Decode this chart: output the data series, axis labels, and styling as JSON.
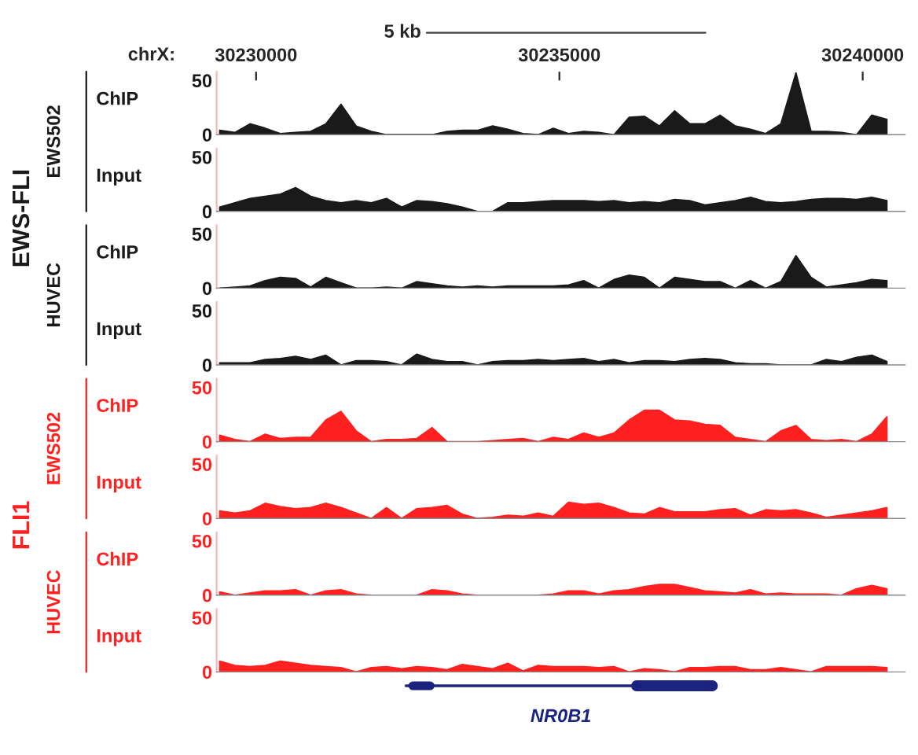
{
  "chart_data": [
    {
      "type": "other",
      "annotations": [
        "EWS-FLI",
        "EWS502",
        "HUVEC",
        "FLI1",
        "EWS502",
        "HUVEC"
      ],
      "colors": [
        "#1a1a1a",
        "#1a1a1a",
        "#1a1a1a",
        "#ff2020",
        "#ff2020",
        "#ff2020"
      ]
    },
    {
      "type": "area",
      "ylabel": "ChIP",
      "xlabel": "chrX:",
      "annotations": [
        "5 kb"
      ],
      "xlim": [
        30229350,
        30240700
      ],
      "xticks": [
        30230000,
        30235000,
        30240000
      ],
      "ylim": [
        0,
        58
      ],
      "yticks": [
        0,
        50
      ],
      "x": [
        30229400,
        30229650,
        30229900,
        30230150,
        30230400,
        30230650,
        30230900,
        30231150,
        30231400,
        30231650,
        30231900,
        30232150,
        30232400,
        30232650,
        30232900,
        30233150,
        30233400,
        30233650,
        30233900,
        30234150,
        30234400,
        30234650,
        30234900,
        30235150,
        30235400,
        30235650,
        30235900,
        30236150,
        30236400,
        30236650,
        30236900,
        30237150,
        30237400,
        30237650,
        30237900,
        30238150,
        30238400,
        30238650,
        30238900,
        30239150,
        30239400,
        30239650,
        30239900,
        30240150,
        30240400
      ],
      "series": [
        {
          "color": "#1a1a1a",
          "values": [
            4,
            2,
            10,
            6,
            1,
            2,
            3,
            10,
            28,
            8,
            3,
            0,
            0,
            0,
            0,
            3,
            4,
            4,
            8,
            5,
            1,
            0,
            6,
            1,
            3,
            2,
            0,
            16,
            17,
            8,
            22,
            10,
            10,
            18,
            8,
            5,
            1,
            10,
            57,
            3,
            3,
            2,
            0,
            18,
            14
          ]
        }
      ]
    },
    {
      "type": "area",
      "ylabel": "Input",
      "tick_labels": "y",
      "xlim": [
        30229350,
        30240700
      ],
      "ylim": [
        0,
        58
      ],
      "yticks": [
        0,
        50
      ],
      "x": [
        30229400,
        30229650,
        30229900,
        30230150,
        30230400,
        30230650,
        30230900,
        30231150,
        30231400,
        30231650,
        30231900,
        30232150,
        30232400,
        30232650,
        30232900,
        30233150,
        30233400,
        30233650,
        30233900,
        30234150,
        30234400,
        30234650,
        30234900,
        30235150,
        30235400,
        30235650,
        30235900,
        30236150,
        30236400,
        30236650,
        30236900,
        30237150,
        30237400,
        30237650,
        30237900,
        30238150,
        30238400,
        30238650,
        30238900,
        30239150,
        30239400,
        30239650,
        30239900,
        30240150,
        30240400
      ],
      "series": [
        {
          "color": "#1a1a1a",
          "values": [
            4,
            8,
            12,
            14,
            16,
            22,
            14,
            10,
            8,
            10,
            8,
            12,
            4,
            10,
            9,
            7,
            4,
            0,
            0,
            8,
            8,
            9,
            10,
            10,
            10,
            9,
            10,
            8,
            9,
            8,
            11,
            10,
            6,
            8,
            10,
            13,
            9,
            8,
            9,
            11,
            12,
            12,
            11,
            13,
            10
          ]
        }
      ]
    },
    {
      "type": "area",
      "ylabel": "ChIP",
      "tick_labels": "y",
      "xlim": [
        30229350,
        30240700
      ],
      "ylim": [
        0,
        58
      ],
      "yticks": [
        0,
        50
      ],
      "x": [
        30229400,
        30229650,
        30229900,
        30230150,
        30230400,
        30230650,
        30230900,
        30231150,
        30231400,
        30231650,
        30231900,
        30232150,
        30232400,
        30232650,
        30232900,
        30233150,
        30233400,
        30233650,
        30233900,
        30234150,
        30234400,
        30234650,
        30234900,
        30235150,
        30235400,
        30235650,
        30235900,
        30236150,
        30236400,
        30236650,
        30236900,
        30237150,
        30237400,
        30237650,
        30237900,
        30238150,
        30238400,
        30238650,
        30238900,
        30239150,
        30239400,
        30239650,
        30239900,
        30240150,
        30240400
      ],
      "series": [
        {
          "color": "#1a1a1a",
          "values": [
            0,
            1,
            2,
            7,
            10,
            9,
            1,
            10,
            5,
            0,
            0,
            1,
            0,
            6,
            4,
            2,
            1,
            2,
            1,
            2,
            2,
            2,
            2,
            3,
            7,
            0,
            8,
            12,
            10,
            0,
            10,
            8,
            6,
            6,
            0,
            7,
            0,
            6,
            30,
            10,
            1,
            3,
            5,
            8,
            7
          ]
        }
      ]
    },
    {
      "type": "area",
      "ylabel": "Input",
      "tick_labels": "y",
      "xlim": [
        30229350,
        30240700
      ],
      "ylim": [
        0,
        58
      ],
      "yticks": [
        0,
        50
      ],
      "x": [
        30229400,
        30229650,
        30229900,
        30230150,
        30230400,
        30230650,
        30230900,
        30231150,
        30231400,
        30231650,
        30231900,
        30232150,
        30232400,
        30232650,
        30232900,
        30233150,
        30233400,
        30233650,
        30233900,
        30234150,
        30234400,
        30234650,
        30234900,
        30235150,
        30235400,
        30235650,
        30235900,
        30236150,
        30236400,
        30236650,
        30236900,
        30237150,
        30237400,
        30237650,
        30237900,
        30238150,
        30238400,
        30238650,
        30238900,
        30239150,
        30239400,
        30239650,
        30239900,
        30240150,
        30240400
      ],
      "series": [
        {
          "color": "#1a1a1a",
          "values": [
            2,
            2,
            2,
            5,
            6,
            8,
            5,
            9,
            0,
            4,
            4,
            3,
            0,
            10,
            5,
            3,
            3,
            0,
            3,
            4,
            4,
            5,
            4,
            5,
            6,
            3,
            5,
            2,
            4,
            4,
            3,
            5,
            6,
            5,
            2,
            1,
            1,
            0,
            0,
            0,
            5,
            3,
            7,
            9,
            3
          ]
        }
      ]
    },
    {
      "type": "area",
      "ylabel": "ChIP",
      "tick_labels": "y",
      "xlim": [
        30229350,
        30240700
      ],
      "ylim": [
        0,
        58
      ],
      "yticks": [
        0,
        50
      ],
      "x": [
        30229400,
        30229650,
        30229900,
        30230150,
        30230400,
        30230650,
        30230900,
        30231150,
        30231400,
        30231650,
        30231900,
        30232150,
        30232400,
        30232650,
        30232900,
        30233150,
        30233400,
        30233650,
        30233900,
        30234150,
        30234400,
        30234650,
        30234900,
        30235150,
        30235400,
        30235650,
        30235900,
        30236150,
        30236400,
        30236650,
        30236900,
        30237150,
        30237400,
        30237650,
        30237900,
        30238150,
        30238400,
        30238650,
        30238900,
        30239150,
        30239400,
        30239650,
        30239900,
        30240150,
        30240400
      ],
      "series": [
        {
          "color": "#ff2020",
          "values": [
            6,
            2,
            0,
            7,
            3,
            4,
            4,
            20,
            28,
            10,
            0,
            2,
            2,
            3,
            13,
            0,
            0,
            0,
            1,
            2,
            3,
            0,
            4,
            2,
            8,
            4,
            8,
            20,
            29,
            29,
            20,
            19,
            16,
            15,
            4,
            2,
            0,
            10,
            15,
            2,
            1,
            2,
            0,
            7,
            23
          ]
        }
      ]
    },
    {
      "type": "area",
      "ylabel": "Input",
      "tick_labels": "y",
      "xlim": [
        30229350,
        30240700
      ],
      "ylim": [
        0,
        58
      ],
      "yticks": [
        0,
        50
      ],
      "x": [
        30229400,
        30229650,
        30229900,
        30230150,
        30230400,
        30230650,
        30230900,
        30231150,
        30231400,
        30231650,
        30231900,
        30232150,
        30232400,
        30232650,
        30232900,
        30233150,
        30233400,
        30233650,
        30233900,
        30234150,
        30234400,
        30234650,
        30234900,
        30235150,
        30235400,
        30235650,
        30235900,
        30236150,
        30236400,
        30236650,
        30236900,
        30237150,
        30237400,
        30237650,
        30237900,
        30238150,
        30238400,
        30238650,
        30238900,
        30239150,
        30239400,
        30239650,
        30239900,
        30240150,
        30240400
      ],
      "series": [
        {
          "color": "#ff2020",
          "values": [
            7,
            5,
            7,
            14,
            11,
            9,
            10,
            14,
            10,
            5,
            0,
            10,
            0,
            9,
            10,
            12,
            4,
            0,
            1,
            3,
            2,
            5,
            2,
            15,
            13,
            14,
            10,
            5,
            4,
            10,
            6,
            6,
            6,
            8,
            9,
            3,
            8,
            7,
            8,
            5,
            1,
            3,
            5,
            7,
            10
          ]
        }
      ]
    },
    {
      "type": "area",
      "ylabel": "ChIP",
      "tick_labels": "y",
      "xlim": [
        30229350,
        30240700
      ],
      "ylim": [
        0,
        58
      ],
      "yticks": [
        0,
        50
      ],
      "x": [
        30229400,
        30229650,
        30229900,
        30230150,
        30230400,
        30230650,
        30230900,
        30231150,
        30231400,
        30231650,
        30231900,
        30232150,
        30232400,
        30232650,
        30232900,
        30233150,
        30233400,
        30233650,
        30233900,
        30234150,
        30234400,
        30234650,
        30234900,
        30235150,
        30235400,
        30235650,
        30235900,
        30236150,
        30236400,
        30236650,
        30236900,
        30237150,
        30237400,
        30237650,
        30237900,
        30238150,
        30238400,
        30238650,
        30238900,
        30239150,
        30239400,
        30239650,
        30239900,
        30240150,
        30240400
      ],
      "series": [
        {
          "color": "#ff2020",
          "values": [
            3,
            0,
            2,
            4,
            4,
            5,
            0,
            4,
            5,
            1,
            0,
            0,
            0,
            0,
            5,
            4,
            1,
            0,
            0,
            0,
            0,
            0,
            1,
            4,
            4,
            1,
            4,
            5,
            8,
            10,
            10,
            7,
            4,
            3,
            2,
            5,
            1,
            2,
            1,
            1,
            1,
            0,
            6,
            9,
            6
          ]
        }
      ]
    },
    {
      "type": "area",
      "ylabel": "Input",
      "tick_labels": "y",
      "annotations": [
        "NR0B1"
      ],
      "xlim": [
        30229350,
        30240700
      ],
      "ylim": [
        0,
        58
      ],
      "yticks": [
        0,
        50
      ],
      "x": [
        30229400,
        30229650,
        30229900,
        30230150,
        30230400,
        30230650,
        30230900,
        30231150,
        30231400,
        30231650,
        30231900,
        30232150,
        30232400,
        30232650,
        30232900,
        30233150,
        30233400,
        30233650,
        30233900,
        30234150,
        30234400,
        30234650,
        30234900,
        30235150,
        30235400,
        30235650,
        30235900,
        30236150,
        30236400,
        30236650,
        30236900,
        30237150,
        30237400,
        30237650,
        30237900,
        30238150,
        30238400,
        30238650,
        30238900,
        30239150,
        30239400,
        30239650,
        30239900,
        30240150,
        30240400
      ],
      "series": [
        {
          "color": "#ff2020",
          "values": [
            10,
            6,
            5,
            6,
            10,
            8,
            6,
            5,
            4,
            0,
            4,
            5,
            3,
            5,
            4,
            2,
            7,
            5,
            3,
            8,
            1,
            6,
            5,
            5,
            5,
            4,
            5,
            0,
            3,
            2,
            0,
            4,
            4,
            5,
            5,
            2,
            2,
            4,
            2,
            0,
            5,
            5,
            5,
            5,
            4
          ]
        }
      ]
    }
  ]
}
